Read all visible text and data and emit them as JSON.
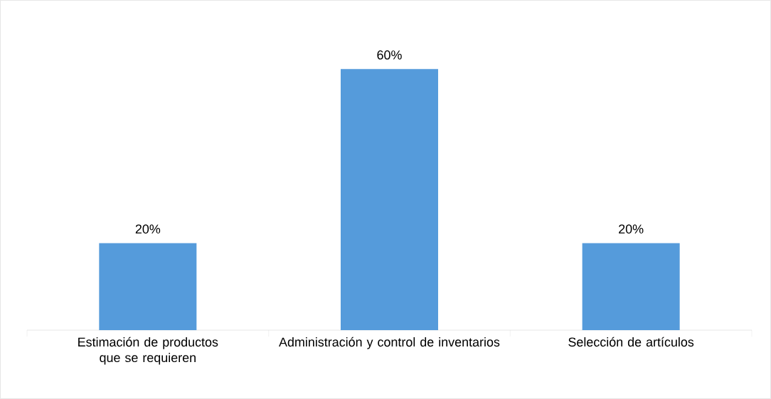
{
  "chart_data": {
    "type": "bar",
    "categories": [
      "Estimación de productos que se requieren",
      "Administración y control de inventarios",
      "Selección de artículos"
    ],
    "values": [
      20,
      60,
      20
    ],
    "color": "#559bdb",
    "value_labels": [
      "20%",
      "60%",
      "20%"
    ],
    "tick_labels": "x"
  }
}
